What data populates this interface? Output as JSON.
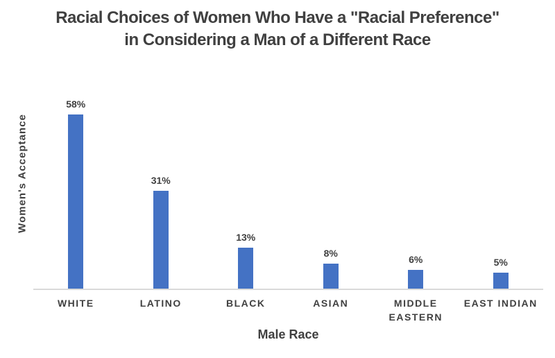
{
  "chart_data": {
    "type": "bar",
    "title_lines": [
      "Racial Choices of Women Who Have a \"Racial Preference\"",
      "in Considering a Man of a Different Race"
    ],
    "title": "Racial Choices of Women Who Have a \"Racial Preference\" in Considering a Man of a Different Race",
    "categories": [
      "WHITE",
      "LATINO",
      "BLACK",
      "ASIAN",
      "MIDDLE EASTERN",
      "EAST INDIAN"
    ],
    "values": [
      58,
      31,
      13,
      8,
      6,
      5
    ],
    "value_labels": [
      "58%",
      "31%",
      "13%",
      "8%",
      "6%",
      "5%"
    ],
    "xlabel": "Male Race",
    "ylabel": "Women's Acceptance",
    "ylim": [
      0,
      60
    ],
    "grid": false,
    "legend": false,
    "y_axis_tick_labels": "none",
    "colors": {
      "bar": "#4472C4",
      "axis_line": "#D9D9D9",
      "text": "#404040",
      "background": "#FFFFFF"
    }
  }
}
